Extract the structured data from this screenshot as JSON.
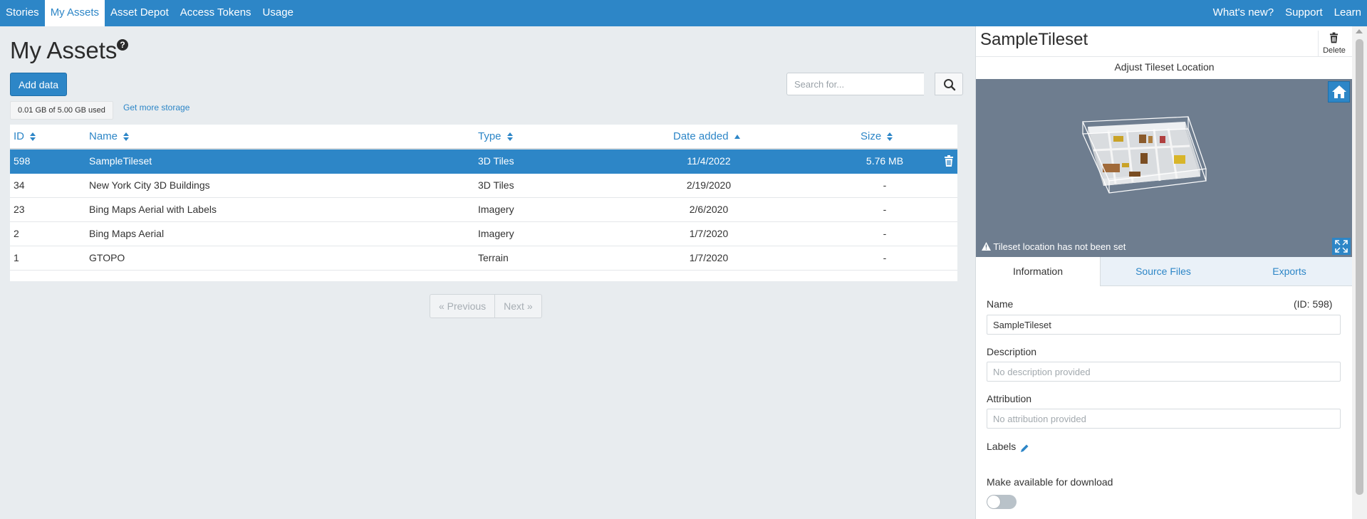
{
  "nav": {
    "left": [
      "Stories",
      "My Assets",
      "Asset Depot",
      "Access Tokens",
      "Usage"
    ],
    "right": [
      "What's new?",
      "Support",
      "Learn"
    ],
    "active": "My Assets"
  },
  "main": {
    "title": "My Assets",
    "add_button": "Add data",
    "storage_used": "0.01 GB of 5.00 GB used",
    "storage_link": "Get more storage",
    "search_placeholder": "Search for...",
    "columns": {
      "id": "ID",
      "name": "Name",
      "type": "Type",
      "date": "Date added",
      "size": "Size"
    },
    "rows": [
      {
        "id": "598",
        "name": "SampleTileset",
        "type": "3D Tiles",
        "date": "11/4/2022",
        "size": "5.76 MB",
        "selected": true
      },
      {
        "id": "34",
        "name": "New York City 3D Buildings",
        "type": "3D Tiles",
        "date": "2/19/2020",
        "size": "-"
      },
      {
        "id": "23",
        "name": "Bing Maps Aerial with Labels",
        "type": "Imagery",
        "date": "2/6/2020",
        "size": "-"
      },
      {
        "id": "2",
        "name": "Bing Maps Aerial",
        "type": "Imagery",
        "date": "1/7/2020",
        "size": "-"
      },
      {
        "id": "1",
        "name": "GTOPO",
        "type": "Terrain",
        "date": "1/7/2020",
        "size": "-"
      }
    ],
    "pager": {
      "prev": "« Previous",
      "next": "Next »"
    }
  },
  "panel": {
    "title": "SampleTileset",
    "delete_label": "Delete",
    "adjust_label": "Adjust Tileset Location",
    "viewer_warning": "Tileset location has not been set",
    "tabs": [
      "Information",
      "Source Files",
      "Exports"
    ],
    "name_label": "Name",
    "id_text": "(ID:   598)",
    "name_value": "SampleTileset",
    "description_label": "Description",
    "description_placeholder": "No description provided",
    "attribution_label": "Attribution",
    "attribution_placeholder": "No attribution provided",
    "labels_label": "Labels",
    "download_label": "Make available for download",
    "download_enabled": false
  },
  "colors": {
    "accent": "#2d86c7",
    "background": "#e8ecef",
    "viewer": "#6e7d8f"
  }
}
